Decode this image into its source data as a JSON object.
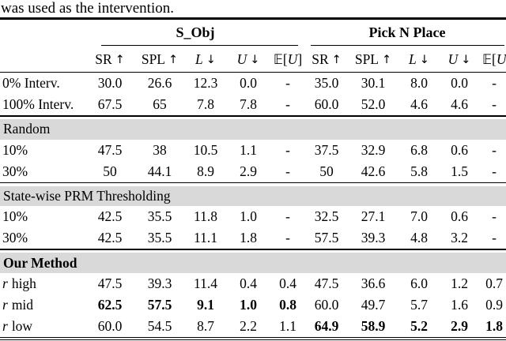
{
  "caption": "was used as the intervention.",
  "colors": {
    "band": "#d9d9d9",
    "rule": "#000000",
    "text": "#000000",
    "background": "#ffffff"
  },
  "table": {
    "groups": [
      {
        "title": "S_Obj"
      },
      {
        "title": "Pick N Place"
      }
    ],
    "metrics": [
      {
        "name": "SR",
        "arrow": "↑"
      },
      {
        "name": "SPL",
        "arrow": "↑"
      },
      {
        "name": "L",
        "arrow": "↓"
      },
      {
        "name": "U",
        "arrow": "↓"
      }
    ],
    "expectation": {
      "bb": "𝔼",
      "open": "[",
      "var": "U",
      "close": "]"
    },
    "sections": [
      {
        "title": "Random"
      },
      {
        "title": "State-wise PRM Thresholding"
      },
      {
        "title": "Our Method"
      }
    ],
    "rows": [
      {
        "label": "0% Interv.",
        "v": [
          "30.0",
          "26.6",
          "12.3",
          "0.0",
          "-",
          "35.0",
          "30.1",
          "8.0",
          "0.0",
          "-"
        ]
      },
      {
        "label": "100% Interv.",
        "v": [
          "67.5",
          "65",
          "7.8",
          "7.8",
          "-",
          "60.0",
          "52.0",
          "4.6",
          "4.6",
          "-"
        ]
      },
      {
        "label": "10%",
        "v": [
          "47.5",
          "38",
          "10.5",
          "1.1",
          "-",
          "37.5",
          "32.9",
          "6.8",
          "0.6",
          "-"
        ]
      },
      {
        "label": "30%",
        "v": [
          "50",
          "44.1",
          "8.9",
          "2.9",
          "-",
          "50",
          "42.6",
          "5.8",
          "1.5",
          "-"
        ]
      },
      {
        "label": "10%",
        "v": [
          "42.5",
          "35.5",
          "11.8",
          "1.0",
          "-",
          "32.5",
          "27.1",
          "7.0",
          "0.6",
          "-"
        ]
      },
      {
        "label": "30%",
        "v": [
          "42.5",
          "35.5",
          "11.1",
          "1.8",
          "-",
          "57.5",
          "39.3",
          "4.8",
          "3.2",
          "-"
        ]
      },
      {
        "label_math": "r",
        "label_text": "high",
        "v": [
          "47.5",
          "39.3",
          "11.4",
          "0.4",
          "0.4",
          "47.5",
          "36.6",
          "6.0",
          "1.2",
          "0.7"
        ]
      },
      {
        "label_math": "r",
        "label_text": "mid",
        "v": [
          "62.5",
          "57.5",
          "9.1",
          "1.0",
          "0.8",
          "60.0",
          "49.7",
          "5.7",
          "1.6",
          "0.9"
        ]
      },
      {
        "label_math": "r",
        "label_text": "low",
        "v": [
          "60.0",
          "54.5",
          "8.7",
          "2.2",
          "1.1",
          "64.9",
          "58.9",
          "5.2",
          "2.9",
          "1.8"
        ]
      }
    ]
  }
}
